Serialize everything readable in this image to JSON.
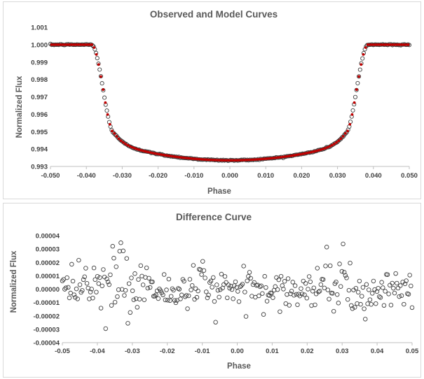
{
  "chart_data": [
    {
      "type": "scatter",
      "title": "Observed and Model Curves",
      "xlabel": "Phase",
      "ylabel": "Normalized Flux",
      "xlim": [
        -0.05,
        0.05
      ],
      "ylim": [
        0.993,
        1.001
      ],
      "x_ticks": [
        "-0.050",
        "-0.040",
        "-0.030",
        "-0.020",
        "-0.010",
        "0.000",
        "0.010",
        "0.020",
        "0.030",
        "0.040",
        "0.050"
      ],
      "y_ticks": [
        "1.001",
        "1.000",
        "0.999",
        "0.998",
        "0.997",
        "0.996",
        "0.995",
        "0.994",
        "0.993"
      ],
      "grid": false,
      "legend": "none",
      "series_colors": {
        "observed": "#404040",
        "model": "#c00000"
      },
      "transit": {
        "t1": 0.0385,
        "t2": 0.0322,
        "baseline": 1.0,
        "depth_at_contact": 0.9949,
        "depth_center": 0.99335
      }
    },
    {
      "type": "scatter",
      "title": "Difference Curve",
      "xlabel": "Phase",
      "ylabel": "Normalized Flux",
      "xlim": [
        -0.05,
        0.05
      ],
      "ylim": [
        -4e-05,
        4e-05
      ],
      "x_ticks": [
        "-0.05",
        "-0.04",
        "-0.03",
        "-0.02",
        "-0.01",
        "0.00",
        "0.01",
        "0.02",
        "0.03",
        "0.04",
        "0.05"
      ],
      "y_ticks": [
        "0.00004",
        "0.00003",
        "0.00002",
        "0.00001",
        "0.00000",
        "-0.00001",
        "-0.00002",
        "-0.00003",
        "-0.00004"
      ],
      "grid": false,
      "legend": "none",
      "marker_color": "#404040"
    }
  ]
}
